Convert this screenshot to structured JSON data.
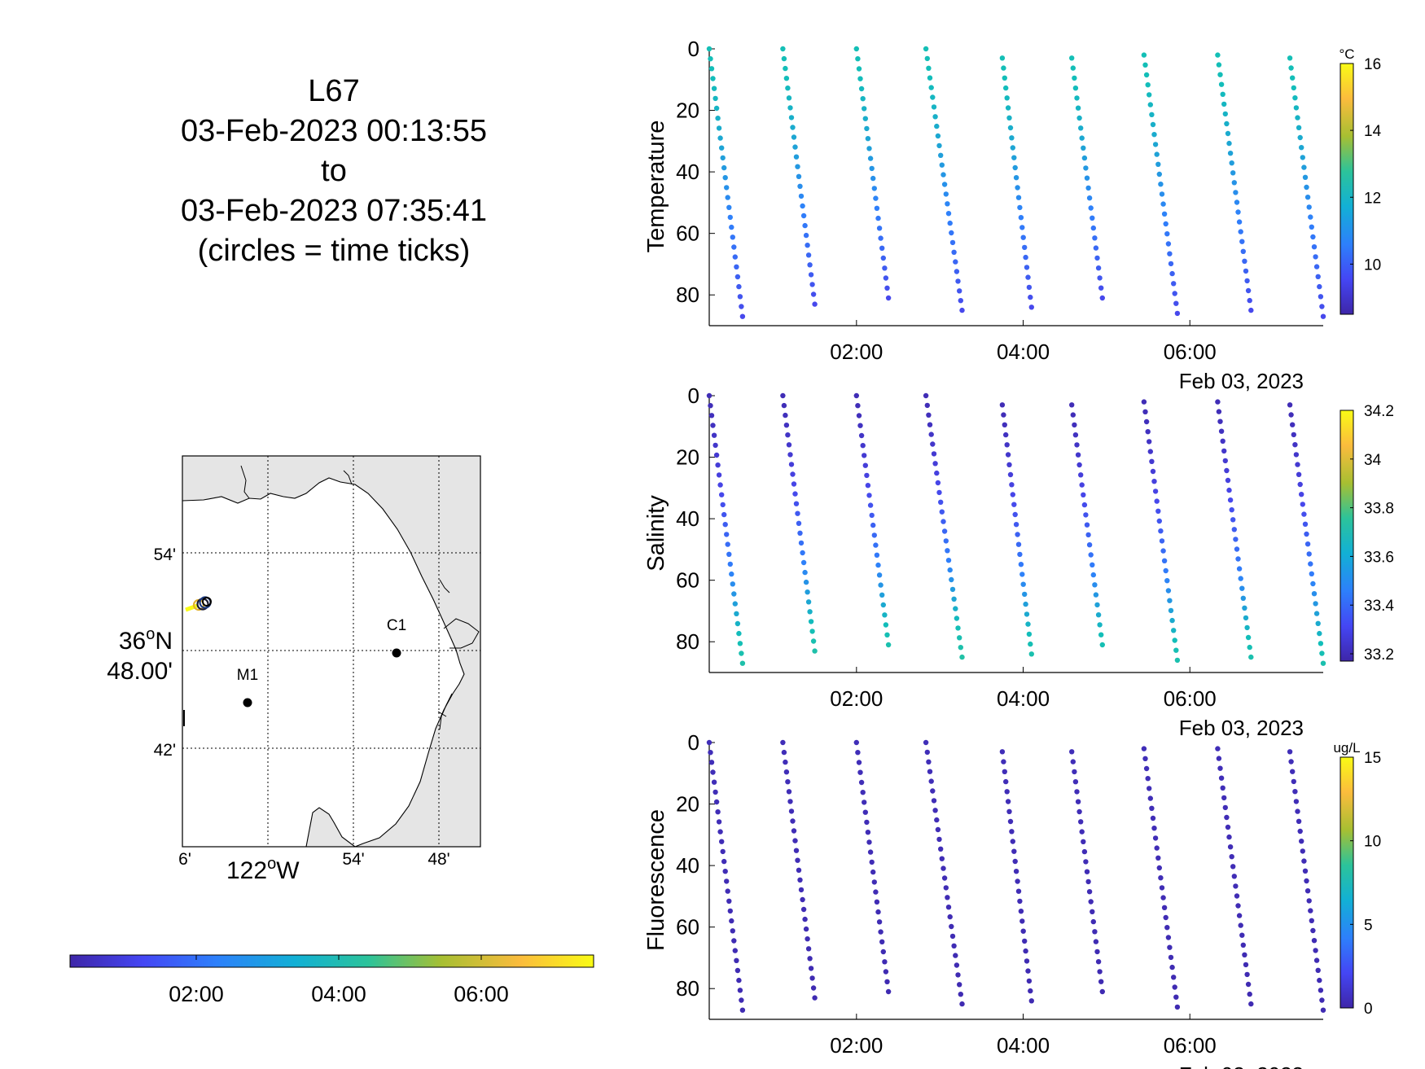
{
  "title": {
    "line1": "L67",
    "line2": "03-Feb-2023 00:13:55",
    "line3": "to",
    "line4": "03-Feb-2023 07:35:41",
    "line5": "(circles = time ticks)"
  },
  "map": {
    "lat_ticks": [
      "54'",
      "42'"
    ],
    "lat_main_label_deg": "36",
    "lat_main_label_hem": "N",
    "lat_main_label_min": "48.00'",
    "lon_ticks": [
      "6'",
      "54'",
      "48'"
    ],
    "lon_main_label_deg": "122",
    "lon_main_label_hem": "W",
    "stations": [
      {
        "name": "C1"
      },
      {
        "name": "M1"
      }
    ],
    "colors": {
      "land": "#e5e5e5",
      "water": "#ffffff",
      "coast": "#000000"
    }
  },
  "time_colorbar": {
    "ticks": [
      "02:00",
      "04:00",
      "06:00"
    ]
  },
  "date_label": "Feb 03, 2023",
  "chart_data": [
    {
      "type": "scatter",
      "ylabel": "Temperature",
      "colorbar_unit": "°C",
      "colorbar_range": [
        8.5,
        16
      ],
      "colorbar_ticks": [
        "16",
        "14",
        "12",
        "10"
      ],
      "y_reversed": true,
      "ylim": [
        0,
        90
      ],
      "y_ticks": [
        "0",
        "20",
        "40",
        "60",
        "80"
      ],
      "x_ticks": [
        "02:00",
        "04:00",
        "06:00"
      ],
      "x_date": "Feb 03, 2023",
      "profiles": [
        {
          "start": "00:14",
          "end": "00:38",
          "zmin": 0,
          "zmax": 87,
          "top": 11.8,
          "bottom": 9.6
        },
        {
          "start": "01:07",
          "end": "01:30",
          "zmin": 0,
          "zmax": 83,
          "top": 11.8,
          "bottom": 9.6
        },
        {
          "start": "02:00",
          "end": "02:23",
          "zmin": 0,
          "zmax": 81,
          "top": 11.8,
          "bottom": 9.6
        },
        {
          "start": "02:50",
          "end": "03:16",
          "zmin": 0,
          "zmax": 85,
          "top": 11.8,
          "bottom": 9.6
        },
        {
          "start": "03:45",
          "end": "04:06",
          "zmin": 3,
          "zmax": 84,
          "top": 11.8,
          "bottom": 9.6
        },
        {
          "start": "04:35",
          "end": "04:57",
          "zmin": 3,
          "zmax": 81,
          "top": 11.8,
          "bottom": 9.6
        },
        {
          "start": "05:27",
          "end": "05:51",
          "zmin": 2,
          "zmax": 86,
          "top": 11.8,
          "bottom": 9.6
        },
        {
          "start": "06:20",
          "end": "06:44",
          "zmin": 2,
          "zmax": 85,
          "top": 11.8,
          "bottom": 9.6
        },
        {
          "start": "07:12",
          "end": "07:36",
          "zmin": 3,
          "zmax": 87,
          "top": 11.8,
          "bottom": 9.6
        }
      ]
    },
    {
      "type": "scatter",
      "ylabel": "Salinity",
      "colorbar_unit": "",
      "colorbar_range": [
        33.17,
        34.2
      ],
      "colorbar_ticks": [
        "34.2",
        "34",
        "33.8",
        "33.6",
        "33.4",
        "33.2"
      ],
      "y_reversed": true,
      "ylim": [
        0,
        90
      ],
      "y_ticks": [
        "0",
        "20",
        "40",
        "60",
        "80"
      ],
      "x_ticks": [
        "02:00",
        "04:00",
        "06:00"
      ],
      "x_date": "Feb 03, 2023",
      "profiles": [
        {
          "start": "00:14",
          "end": "00:38",
          "zmin": 0,
          "zmax": 87,
          "top": 33.2,
          "bottom": 33.68
        },
        {
          "start": "01:07",
          "end": "01:30",
          "zmin": 0,
          "zmax": 83,
          "top": 33.2,
          "bottom": 33.68
        },
        {
          "start": "02:00",
          "end": "02:23",
          "zmin": 0,
          "zmax": 81,
          "top": 33.2,
          "bottom": 33.66
        },
        {
          "start": "02:50",
          "end": "03:16",
          "zmin": 0,
          "zmax": 85,
          "top": 33.2,
          "bottom": 33.7
        },
        {
          "start": "03:45",
          "end": "04:06",
          "zmin": 3,
          "zmax": 84,
          "top": 33.2,
          "bottom": 33.66
        },
        {
          "start": "04:35",
          "end": "04:57",
          "zmin": 3,
          "zmax": 81,
          "top": 33.2,
          "bottom": 33.64
        },
        {
          "start": "05:27",
          "end": "05:51",
          "zmin": 2,
          "zmax": 86,
          "top": 33.2,
          "bottom": 33.66
        },
        {
          "start": "06:20",
          "end": "06:44",
          "zmin": 2,
          "zmax": 85,
          "top": 33.2,
          "bottom": 33.66
        },
        {
          "start": "07:12",
          "end": "07:36",
          "zmin": 3,
          "zmax": 87,
          "top": 33.2,
          "bottom": 33.66
        }
      ]
    },
    {
      "type": "scatter",
      "ylabel": "Fluorescence",
      "colorbar_unit": "ug/L",
      "colorbar_range": [
        0,
        15
      ],
      "colorbar_ticks": [
        "15",
        "10",
        "5",
        "0"
      ],
      "y_reversed": true,
      "ylim": [
        0,
        90
      ],
      "y_ticks": [
        "0",
        "20",
        "40",
        "60",
        "80"
      ],
      "x_ticks": [
        "02:00",
        "04:00",
        "06:00"
      ],
      "x_date": "Feb 03, 2023",
      "profiles": [
        {
          "start": "00:14",
          "end": "00:38",
          "zmin": 0,
          "zmax": 87,
          "top": 0.5,
          "bottom": 0.3
        },
        {
          "start": "01:07",
          "end": "01:30",
          "zmin": 0,
          "zmax": 83,
          "top": 0.5,
          "bottom": 0.3
        },
        {
          "start": "02:00",
          "end": "02:23",
          "zmin": 0,
          "zmax": 81,
          "top": 0.5,
          "bottom": 0.3
        },
        {
          "start": "02:50",
          "end": "03:16",
          "zmin": 0,
          "zmax": 85,
          "top": 0.5,
          "bottom": 0.3
        },
        {
          "start": "03:45",
          "end": "04:06",
          "zmin": 3,
          "zmax": 84,
          "top": 0.5,
          "bottom": 0.3
        },
        {
          "start": "04:35",
          "end": "04:57",
          "zmin": 3,
          "zmax": 81,
          "top": 0.5,
          "bottom": 0.3
        },
        {
          "start": "05:27",
          "end": "05:51",
          "zmin": 2,
          "zmax": 86,
          "top": 0.5,
          "bottom": 0.3
        },
        {
          "start": "06:20",
          "end": "06:44",
          "zmin": 2,
          "zmax": 85,
          "top": 0.5,
          "bottom": 0.3
        },
        {
          "start": "07:12",
          "end": "07:36",
          "zmin": 3,
          "zmax": 87,
          "top": 0.5,
          "bottom": 0.3
        }
      ]
    }
  ]
}
